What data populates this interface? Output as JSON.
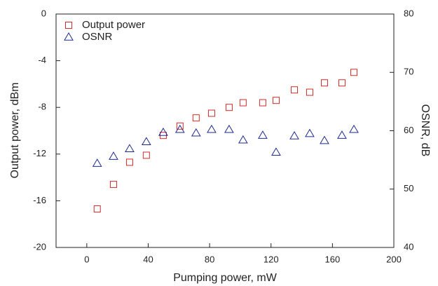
{
  "chart_data": {
    "type": "scatter",
    "xlabel": "Pumping power, mW",
    "ylabel": "Output power, dBm",
    "y2label": "OSNR, dB",
    "x": [
      6.8,
      17.4,
      27.9,
      38.8,
      49.8,
      60.7,
      71.2,
      81.3,
      92.7,
      101.8,
      114.6,
      123.3,
      135.2,
      145.2,
      154.8,
      166.2,
      174
    ],
    "series": [
      {
        "name": "Output power",
        "color": "#d42a2a",
        "marker": "square",
        "values": [
          -16.7,
          -14.6,
          -12.7,
          -12.1,
          -10.4,
          -9.6,
          -8.9,
          -8.5,
          -8.0,
          -7.6,
          -7.6,
          -7.4,
          -6.5,
          -6.7,
          -5.9,
          -5.9,
          -5.0
        ]
      },
      {
        "name": "OSNR",
        "color": "#1f2a8c",
        "marker": "triangle",
        "axis": "y2",
        "values": [
          54.4,
          55.6,
          56.9,
          58.1,
          59.7,
          60.2,
          59.6,
          60.2,
          60.2,
          58.4,
          59.2,
          56.3,
          59.1,
          59.5,
          58.3,
          59.2,
          60.2
        ]
      }
    ],
    "xlim": [
      -20,
      200
    ],
    "xticks": [
      0,
      40,
      80,
      120,
      160,
      200
    ],
    "ylim": [
      -20,
      0
    ],
    "yticks": [
      -20,
      -16,
      -12,
      -8,
      -4,
      0
    ],
    "y2lim": [
      40,
      80
    ],
    "y2ticks": [
      40,
      50,
      60,
      70,
      80
    ],
    "legend": "upper-left"
  }
}
